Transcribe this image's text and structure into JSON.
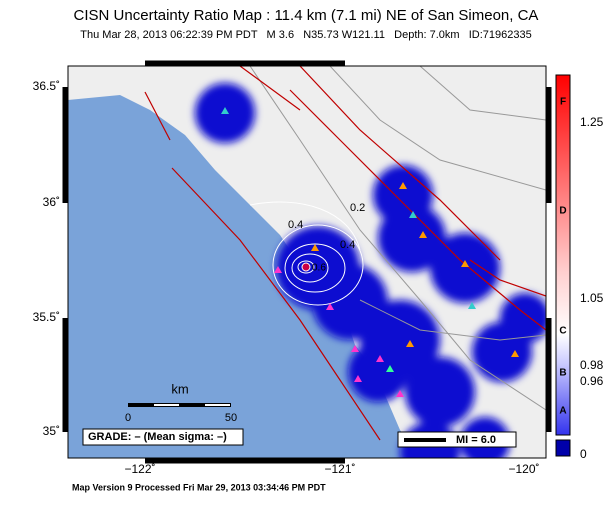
{
  "header": {
    "title": "CISN Uncertainty Ratio Map : 11.4 km (7.1 mi) NE of San Simeon, CA",
    "subtitle": "Thu Mar 28, 2013 06:22:39 PM PDT   M 3.6   N35.73 W121.11   Depth: 7.0km   ID:71962335"
  },
  "axes": {
    "lat_labels": [
      "36.5˚",
      "36˚",
      "35.5˚",
      "35˚"
    ],
    "lon_labels": [
      "−122˚",
      "−121˚",
      "−120˚"
    ]
  },
  "colorbar": {
    "labels": [
      "1.25",
      "1.05",
      "0.98",
      "0.96",
      "0"
    ],
    "grades": [
      "F",
      "D",
      "C",
      "B",
      "A"
    ]
  },
  "scale": {
    "title": "km",
    "labels": [
      "0",
      "50"
    ]
  },
  "contour_labels": [
    "0.2",
    "0.4",
    "0.4",
    "0.6"
  ],
  "grade_box": "GRADE: – (Mean sigma: –)",
  "mi_box": "MI = 6.0",
  "footer": "Map Version 9 Processed Fri Mar 29, 2013 03:34:46 PM PDT"
}
